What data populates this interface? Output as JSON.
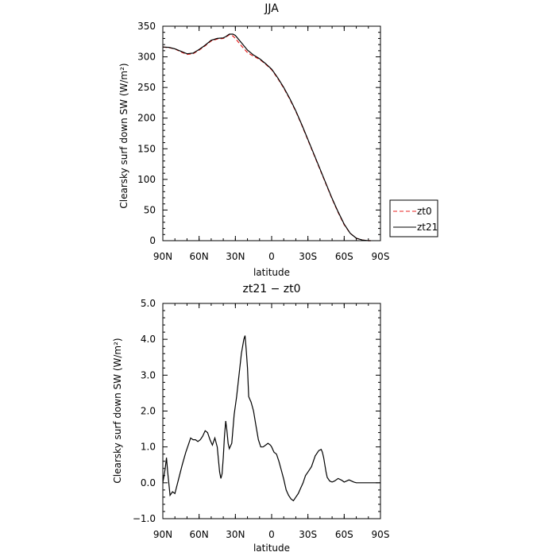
{
  "chart_data": [
    {
      "type": "line",
      "title": "JJA",
      "xlabel": "latitude",
      "ylabel": "Clearsky surf down SW (W/m²)",
      "xlim": [
        90,
        -90
      ],
      "ylim": [
        0,
        350
      ],
      "xtick_values": [
        90,
        60,
        30,
        0,
        -30,
        -60,
        -90
      ],
      "xtick_labels": [
        "90N",
        "60N",
        "30N",
        "0",
        "30S",
        "60S",
        "90S"
      ],
      "ytick_values": [
        0,
        50,
        100,
        150,
        200,
        250,
        300,
        350
      ],
      "ytick_labels": [
        "0",
        "50",
        "100",
        "150",
        "200",
        "250",
        "300",
        "350"
      ],
      "legend_position": "right",
      "series": [
        {
          "name": "zt0",
          "color": "#e8211f",
          "dash": "dashed",
          "x": [
            90,
            85,
            80,
            75,
            70,
            65,
            60,
            55,
            50,
            45,
            40,
            38,
            35,
            32,
            30,
            25,
            20,
            15,
            10,
            5,
            0,
            -5,
            -10,
            -15,
            -20,
            -25,
            -30,
            -35,
            -40,
            -45,
            -50,
            -55,
            -60,
            -65,
            -70,
            -75,
            -80,
            -82
          ],
          "y": [
            316,
            315,
            313,
            308,
            304,
            305,
            311,
            318,
            326,
            329,
            330,
            332,
            336,
            334,
            330,
            318,
            307,
            301,
            296,
            288,
            279,
            265,
            249,
            231,
            211,
            188,
            164,
            140,
            116,
            92,
            68,
            46,
            26,
            12,
            4,
            1,
            0,
            0
          ]
        },
        {
          "name": "zt21",
          "color": "#000000",
          "dash": "solid",
          "x": [
            90,
            85,
            80,
            75,
            70,
            65,
            60,
            55,
            50,
            45,
            40,
            38,
            35,
            32,
            30,
            25,
            20,
            15,
            10,
            5,
            0,
            -5,
            -10,
            -15,
            -20,
            -25,
            -30,
            -35,
            -40,
            -45,
            -50,
            -55,
            -60,
            -65,
            -70,
            -75,
            -80,
            -82
          ],
          "y": [
            316,
            315.5,
            313,
            309,
            305,
            306,
            312,
            319,
            327,
            330,
            331,
            333,
            337,
            337,
            335,
            323,
            311,
            303,
            297,
            289,
            280,
            266,
            250,
            232,
            212,
            189,
            165,
            141,
            117,
            93,
            69,
            47,
            27,
            12,
            4,
            1,
            0,
            0
          ]
        }
      ]
    },
    {
      "type": "line",
      "title": "zt21 − zt0",
      "xlabel": "latitude",
      "ylabel": "Clearsky surf down SW (W/m²)",
      "xlim": [
        90,
        -90
      ],
      "ylim": [
        -1.0,
        5.0
      ],
      "xtick_values": [
        90,
        60,
        30,
        0,
        -30,
        -60,
        -90
      ],
      "xtick_labels": [
        "90N",
        "60N",
        "30N",
        "0",
        "30S",
        "60S",
        "90S"
      ],
      "ytick_values": [
        -1,
        0,
        1,
        2,
        3,
        4,
        5
      ],
      "ytick_labels": [
        "−1.0",
        "0.0",
        "1.0",
        "2.0",
        "3.0",
        "4.0",
        "5.0"
      ],
      "series": [
        {
          "color": "#000000",
          "dash": "solid",
          "x": [
            90,
            88,
            87,
            86,
            84,
            82,
            80,
            77,
            74,
            71,
            69,
            67,
            65,
            63,
            61,
            59,
            57,
            55,
            53,
            51,
            49,
            47,
            45,
            43,
            42,
            41,
            40,
            39,
            38,
            37,
            36,
            35,
            33,
            31,
            29,
            27,
            25,
            23,
            22,
            21,
            20,
            19,
            17,
            15,
            13,
            11,
            9,
            7,
            5,
            3,
            1,
            0,
            -2,
            -4,
            -6,
            -8,
            -10,
            -12,
            -14,
            -16,
            -18,
            -20,
            -22,
            -24,
            -26,
            -28,
            -30,
            -33,
            -36,
            -39,
            -41,
            -42,
            -43,
            -44,
            -45,
            -46,
            -48,
            -50,
            -52,
            -55,
            -58,
            -60,
            -62,
            -64,
            -66,
            -68,
            -70,
            -72,
            -74,
            -76,
            -78,
            -80,
            -83,
            -86,
            -90
          ],
          "y": [
            0.0,
            0.4,
            0.7,
            0.3,
            -0.35,
            -0.25,
            -0.3,
            0.1,
            0.5,
            0.85,
            1.05,
            1.25,
            1.2,
            1.2,
            1.15,
            1.2,
            1.3,
            1.45,
            1.4,
            1.2,
            1.05,
            1.25,
            1.0,
            0.3,
            0.12,
            0.25,
            0.7,
            1.3,
            1.72,
            1.45,
            1.1,
            0.95,
            1.1,
            1.9,
            2.4,
            3.0,
            3.6,
            4.0,
            4.1,
            3.7,
            3.2,
            2.4,
            2.25,
            2.0,
            1.6,
            1.2,
            1.0,
            1.0,
            1.05,
            1.1,
            1.05,
            1.0,
            0.85,
            0.8,
            0.6,
            0.35,
            0.1,
            -0.2,
            -0.35,
            -0.45,
            -0.5,
            -0.4,
            -0.3,
            -0.15,
            0.0,
            0.2,
            0.3,
            0.45,
            0.75,
            0.9,
            0.93,
            0.85,
            0.7,
            0.5,
            0.3,
            0.15,
            0.05,
            0.02,
            0.05,
            0.12,
            0.07,
            0.02,
            0.05,
            0.08,
            0.05,
            0.02,
            0.0,
            0.0,
            0.0,
            0.0,
            0.0,
            0.0,
            0.0,
            0.0,
            0.0
          ]
        }
      ]
    }
  ]
}
